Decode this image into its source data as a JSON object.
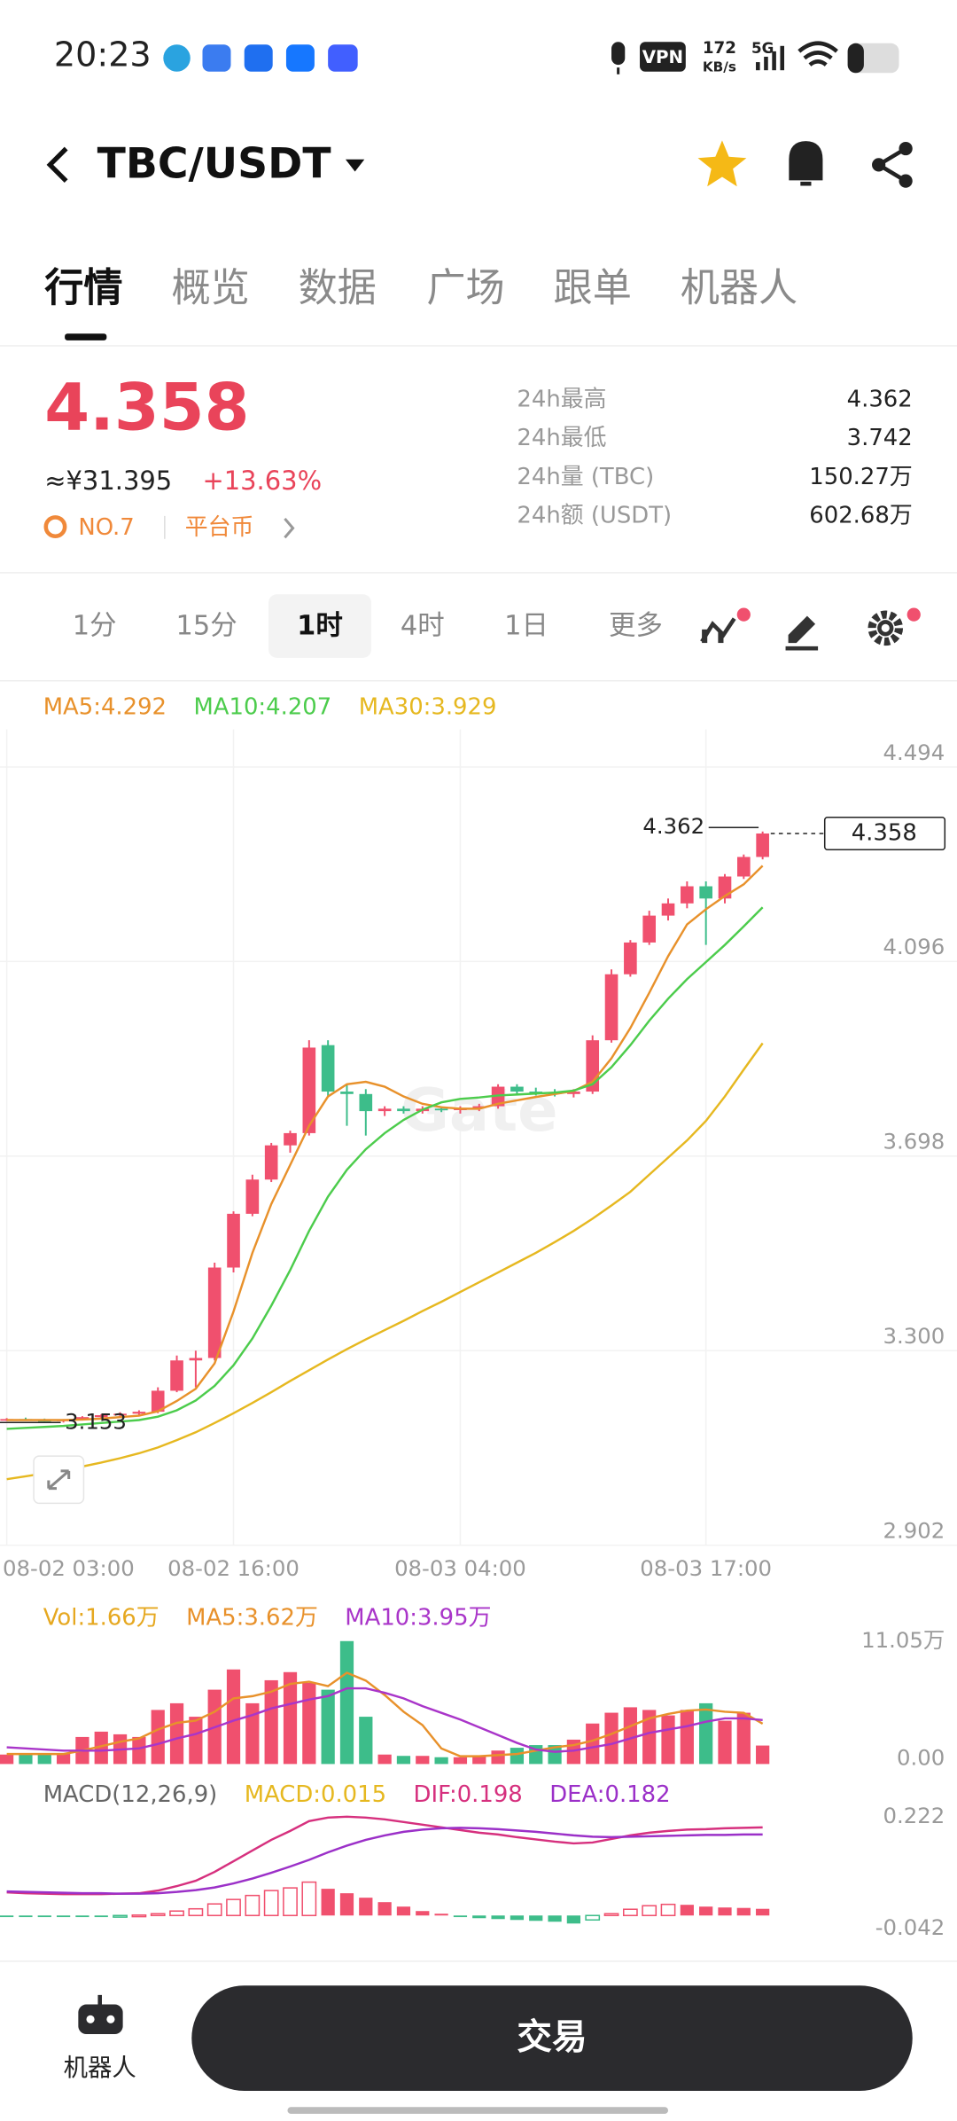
{
  "status_bar": {
    "time": "20:23",
    "vpn": "VPN",
    "speed_value": "172",
    "speed_unit": "KB/s",
    "network": "5G"
  },
  "header": {
    "pair": "TBC/USDT"
  },
  "tabs": {
    "items": [
      "行情",
      "概览",
      "数据",
      "广场",
      "跟单",
      "机器人"
    ],
    "active": 0
  },
  "ticker": {
    "price": "4.358",
    "cny": "≈¥31.395",
    "change": "+13.63%",
    "rank": "NO.7",
    "tag": "平台币",
    "stats": [
      {
        "label": "24h最高",
        "value": "4.362"
      },
      {
        "label": "24h最低",
        "value": "3.742"
      },
      {
        "label": "24h量 (TBC)",
        "value": "150.27万"
      },
      {
        "label": "24h额 (USDT)",
        "value": "602.68万"
      }
    ]
  },
  "intervals": {
    "items": [
      "1分",
      "15分",
      "1时",
      "4时",
      "1日",
      "更多"
    ],
    "active": 2
  },
  "footer": {
    "robot": "机器人",
    "trade": "交易"
  },
  "chart_data": [
    {
      "type": "candlestick",
      "watermark": "Gate",
      "up_color": "#f0506e",
      "down_color": "#3dbd8a",
      "categories": [
        "08-02 03:00",
        null,
        null,
        null,
        null,
        null,
        null,
        null,
        null,
        null,
        null,
        null,
        "08-02 16:00",
        null,
        null,
        null,
        null,
        null,
        null,
        null,
        null,
        null,
        null,
        null,
        "08-03 04:00",
        null,
        null,
        null,
        null,
        null,
        null,
        null,
        null,
        null,
        null,
        null,
        null,
        "08-03 17:00",
        null,
        null,
        null
      ],
      "open": [
        3.158,
        3.16,
        3.158,
        3.157,
        3.159,
        3.164,
        3.168,
        3.171,
        3.175,
        3.218,
        3.28,
        3.285,
        3.47,
        3.58,
        3.65,
        3.72,
        3.745,
        3.925,
        3.83,
        3.825,
        3.79,
        3.795,
        3.79,
        3.795,
        3.792,
        3.796,
        3.8,
        3.84,
        3.83,
        3.828,
        3.825,
        3.83,
        3.935,
        4.07,
        4.135,
        4.19,
        4.215,
        4.25,
        4.225,
        4.27,
        4.31
      ],
      "high": [
        3.162,
        3.163,
        3.161,
        3.16,
        3.166,
        3.17,
        3.174,
        3.178,
        3.225,
        3.29,
        3.3,
        3.48,
        3.585,
        3.66,
        3.725,
        3.75,
        3.935,
        3.935,
        3.845,
        3.835,
        3.8,
        3.8,
        3.8,
        3.8,
        3.8,
        3.805,
        3.845,
        3.845,
        3.838,
        3.835,
        3.835,
        3.945,
        4.08,
        4.14,
        4.2,
        4.225,
        4.26,
        4.26,
        4.275,
        4.315,
        4.362
      ],
      "low": [
        3.156,
        3.157,
        3.155,
        3.153,
        3.157,
        3.162,
        3.165,
        3.168,
        3.172,
        3.215,
        3.225,
        3.28,
        3.46,
        3.575,
        3.645,
        3.705,
        3.74,
        3.82,
        3.76,
        3.74,
        3.78,
        3.785,
        3.785,
        3.788,
        3.785,
        3.79,
        3.795,
        3.825,
        3.822,
        3.82,
        3.818,
        3.825,
        3.93,
        4.065,
        4.13,
        4.18,
        4.205,
        4.13,
        4.215,
        4.265,
        4.305
      ],
      "close": [
        3.16,
        3.158,
        3.157,
        3.159,
        3.164,
        3.168,
        3.171,
        3.175,
        3.218,
        3.28,
        3.285,
        3.47,
        3.58,
        3.65,
        3.72,
        3.745,
        3.92,
        3.83,
        3.825,
        3.79,
        3.795,
        3.79,
        3.795,
        3.792,
        3.796,
        3.8,
        3.84,
        3.83,
        3.828,
        3.825,
        3.83,
        3.935,
        4.07,
        4.135,
        4.19,
        4.215,
        4.25,
        4.225,
        4.27,
        4.31,
        4.358
      ],
      "series": [
        {
          "name": "MA5:4.292",
          "color": "#e8912b",
          "values": [
            3.158,
            3.158,
            3.158,
            3.158,
            3.159,
            3.161,
            3.164,
            3.167,
            3.176,
            3.197,
            3.222,
            3.274,
            3.38,
            3.5,
            3.6,
            3.68,
            3.76,
            3.82,
            3.845,
            3.85,
            3.84,
            3.82,
            3.805,
            3.798,
            3.795,
            3.795,
            3.805,
            3.812,
            3.819,
            3.825,
            3.831,
            3.85,
            3.898,
            3.96,
            4.032,
            4.107,
            4.172,
            4.203,
            4.23,
            4.254,
            4.292
          ]
        },
        {
          "name": "MA10:4.207",
          "color": "#4ccc4c",
          "values": [
            3.14,
            3.142,
            3.144,
            3.146,
            3.149,
            3.152,
            3.155,
            3.158,
            3.165,
            3.178,
            3.198,
            3.228,
            3.27,
            3.325,
            3.392,
            3.465,
            3.545,
            3.615,
            3.67,
            3.712,
            3.745,
            3.772,
            3.793,
            3.808,
            3.815,
            3.818,
            3.822,
            3.824,
            3.826,
            3.828,
            3.832,
            3.845,
            3.88,
            3.925,
            3.975,
            4.02,
            4.06,
            4.095,
            4.13,
            4.168,
            4.207
          ]
        },
        {
          "name": "MA30:3.929",
          "color": "#e6b820",
          "values": [
            3.037,
            3.043,
            3.049,
            3.056,
            3.063,
            3.071,
            3.08,
            3.09,
            3.102,
            3.117,
            3.133,
            3.152,
            3.172,
            3.193,
            3.215,
            3.238,
            3.26,
            3.282,
            3.303,
            3.323,
            3.342,
            3.361,
            3.381,
            3.4,
            3.42,
            3.44,
            3.46,
            3.48,
            3.5,
            3.522,
            3.545,
            3.57,
            3.597,
            3.625,
            3.66,
            3.695,
            3.73,
            3.77,
            3.82,
            3.875,
            3.929
          ]
        }
      ],
      "high_marker": {
        "value": 4.362,
        "index": 40
      },
      "low_marker": {
        "value": 3.153,
        "index": 3
      },
      "last_price": 4.358,
      "ylim": [
        2.902,
        4.571
      ],
      "yticks": [
        4.494,
        4.096,
        3.698,
        {
          "value": 3.3,
          "label": "3.300"
        },
        2.902
      ],
      "grid": true
    },
    {
      "type": "bar",
      "bar_colors": "candle",
      "series": [
        {
          "name": "Vol:1.66万",
          "color": "#e6a820",
          "values": [
            0.85,
            0.85,
            0.97,
            0.97,
            2.43,
            2.91,
            2.67,
            2.43,
            4.86,
            5.46,
            4.25,
            6.68,
            8.5,
            5.46,
            7.53,
            8.26,
            7.29,
            6.68,
            11.05,
            4.25,
            0.85,
            0.73,
            0.73,
            0.61,
            0.61,
            0.73,
            1.21,
            1.46,
            1.7,
            1.7,
            2.19,
            3.64,
            4.61,
            5.1,
            4.86,
            4.37,
            4.86,
            5.46,
            3.89,
            4.61,
            1.66
          ]
        },
        {
          "name": "MA5:3.62万",
          "color": "#e8912b",
          "values": [
            0.9,
            0.9,
            0.9,
            0.9,
            1.2,
            1.6,
            2.0,
            2.3,
            3.1,
            3.7,
            3.9,
            4.7,
            5.9,
            6.1,
            6.5,
            7.2,
            7.4,
            7.0,
            8.2,
            7.5,
            6.2,
            4.7,
            3.5,
            1.4,
            0.7,
            0.7,
            0.8,
            0.9,
            1.2,
            1.5,
            1.7,
            2.1,
            2.7,
            3.4,
            4.1,
            4.5,
            4.8,
            4.9,
            4.7,
            4.6,
            3.62
          ]
        },
        {
          "name": "MA10:3.95万",
          "color": "#a935c9",
          "values": [
            1.5,
            1.4,
            1.3,
            1.2,
            1.2,
            1.2,
            1.3,
            1.4,
            1.8,
            2.3,
            2.7,
            3.3,
            3.9,
            4.4,
            5.0,
            5.4,
            5.8,
            6.1,
            6.8,
            6.8,
            6.4,
            5.9,
            5.2,
            4.6,
            4.0,
            3.3,
            2.6,
            1.9,
            1.3,
            1.1,
            1.2,
            1.5,
            1.8,
            2.3,
            2.8,
            3.1,
            3.4,
            3.8,
            4.1,
            4.1,
            3.95
          ]
        }
      ],
      "ylim": [
        0,
        11.05
      ],
      "yticks": [
        {
          "value": 11.05,
          "label": "11.05万"
        },
        {
          "value": 0,
          "label": "0.00"
        }
      ]
    },
    {
      "type": "bar",
      "bar_colors": "sign",
      "title": "MACD(12,26,9)",
      "up_color": "#f0506e",
      "down_color": "#3dbd8a",
      "series": [
        {
          "name": "MACD:0.015",
          "color": "#e6b820",
          "values": [
            -0.002,
            -0.002,
            -0.002,
            -0.002,
            -0.002,
            -0.002,
            -0.001,
            0.001,
            0.004,
            0.01,
            0.015,
            0.026,
            0.036,
            0.045,
            0.056,
            0.062,
            0.075,
            0.06,
            0.05,
            0.04,
            0.03,
            0.02,
            0.01,
            0.004,
            -0.003,
            -0.006,
            -0.008,
            -0.01,
            -0.012,
            -0.014,
            -0.018,
            -0.01,
            0.004,
            0.014,
            0.022,
            0.025,
            0.024,
            0.02,
            0.018,
            0.017,
            0.015
          ]
        },
        {
          "name": "DIF:0.198",
          "color": "#d6307e",
          "values": [
            0.052,
            0.05,
            0.049,
            0.048,
            0.048,
            0.048,
            0.049,
            0.05,
            0.056,
            0.066,
            0.078,
            0.098,
            0.122,
            0.146,
            0.17,
            0.19,
            0.212,
            0.22,
            0.222,
            0.22,
            0.216,
            0.21,
            0.204,
            0.198,
            0.192,
            0.186,
            0.182,
            0.176,
            0.171,
            0.166,
            0.162,
            0.164,
            0.172,
            0.18,
            0.186,
            0.19,
            0.193,
            0.194,
            0.196,
            0.197,
            0.198
          ]
        },
        {
          "name": "DEA:0.182",
          "color": "#9b30c8",
          "values": [
            0.054,
            0.053,
            0.052,
            0.051,
            0.05,
            0.05,
            0.049,
            0.049,
            0.05,
            0.053,
            0.057,
            0.063,
            0.072,
            0.083,
            0.096,
            0.11,
            0.125,
            0.142,
            0.157,
            0.17,
            0.18,
            0.188,
            0.193,
            0.196,
            0.197,
            0.196,
            0.194,
            0.191,
            0.188,
            0.184,
            0.18,
            0.177,
            0.176,
            0.177,
            0.178,
            0.179,
            0.18,
            0.181,
            0.181,
            0.182,
            0.182
          ]
        }
      ],
      "ylim": [
        -0.042,
        0.222
      ],
      "yticks": [
        0.222,
        -0.042
      ]
    }
  ]
}
